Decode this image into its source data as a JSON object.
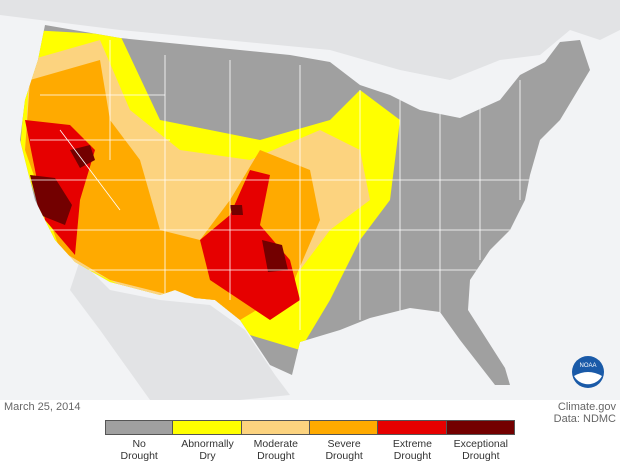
{
  "map": {
    "date": "March 25, 2014",
    "credit": "Climate.gov",
    "source": "Data: NDMC",
    "logo_text": "NOAA",
    "legend": [
      {
        "label": "No Drought",
        "color": "#a0a0a0"
      },
      {
        "label": "Abnormally Dry",
        "color": "#ffff00"
      },
      {
        "label": "Moderate Drought",
        "color": "#fcd37f"
      },
      {
        "label": "Severe Drought",
        "color": "#ffaa00"
      },
      {
        "label": "Extreme Drought",
        "color": "#e60000"
      },
      {
        "label": "Exceptional Drought",
        "color": "#730000"
      }
    ]
  }
}
